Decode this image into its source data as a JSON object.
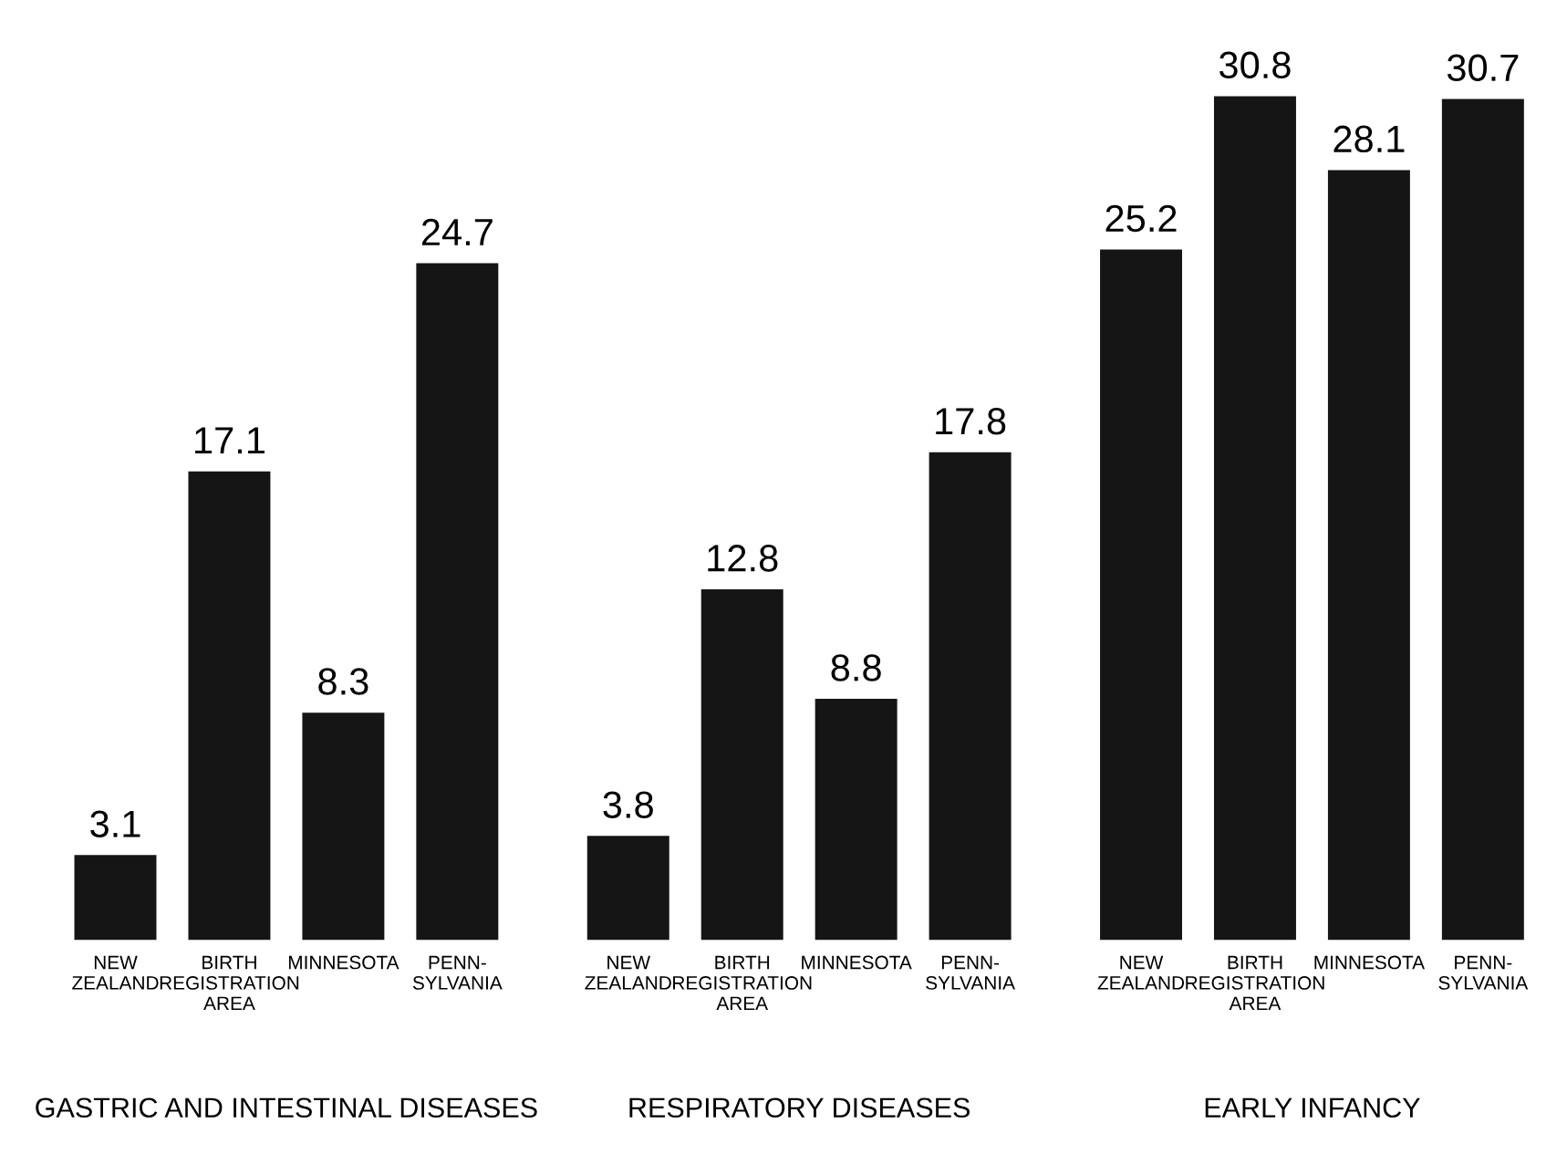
{
  "chart_data": {
    "type": "bar",
    "categories": [
      "NEW\nZEALAND",
      "BIRTH\nREGISTRATION\nAREA",
      "MINNESOTA",
      "PENN-\nSYLVANIA",
      "NEW\nZEALAND",
      "BIRTH\nREGISTRATION\nAREA",
      "MINNESOTA",
      "PENN-\nSYLVANIA",
      "NEW\nZEALAND",
      "BIRTH\nREGISTRATION\nAREA",
      "MINNESOTA",
      "PENN-\nSYLVANIA"
    ],
    "values": [
      3.1,
      17.1,
      8.3,
      24.7,
      3.8,
      12.8,
      8.8,
      17.8,
      25.2,
      30.8,
      28.1,
      30.7
    ],
    "color": "#151515",
    "data_labels": true,
    "annotations": [
      "GASTRIC AND INTESTINAL DISEASES",
      "RESPIRATORY DISEASES",
      "EARLY INFANCY"
    ]
  }
}
